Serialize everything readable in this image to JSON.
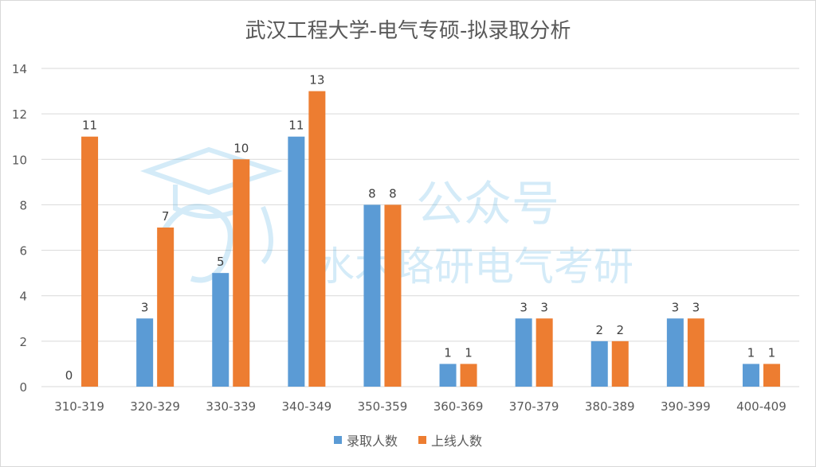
{
  "title": "武汉工程大学-电气专硕-拟录取分析",
  "watermark": {
    "line1": "公众号",
    "line2": "水木珞研电气考研"
  },
  "colors": {
    "series1": "#5b9bd5",
    "series2": "#ed7d31",
    "grid": "#d9d9d9",
    "axis_text": "#595959",
    "watermark": "#3fa9e0"
  },
  "chart_data": {
    "type": "bar",
    "title": "武汉工程大学-电气专硕-拟录取分析",
    "xlabel": "",
    "ylabel": "",
    "ylim": [
      0,
      14
    ],
    "yticks": [
      0,
      2,
      4,
      6,
      8,
      10,
      12,
      14
    ],
    "grid": true,
    "legend_position": "bottom",
    "categories": [
      "310-319",
      "320-329",
      "330-339",
      "340-349",
      "350-359",
      "360-369",
      "370-379",
      "380-389",
      "390-399",
      "400-409"
    ],
    "series": [
      {
        "name": "录取人数",
        "values": [
          0,
          3,
          5,
          11,
          8,
          1,
          3,
          2,
          3,
          1
        ]
      },
      {
        "name": "上线人数",
        "values": [
          11,
          7,
          10,
          13,
          8,
          1,
          3,
          2,
          3,
          1
        ]
      }
    ]
  }
}
